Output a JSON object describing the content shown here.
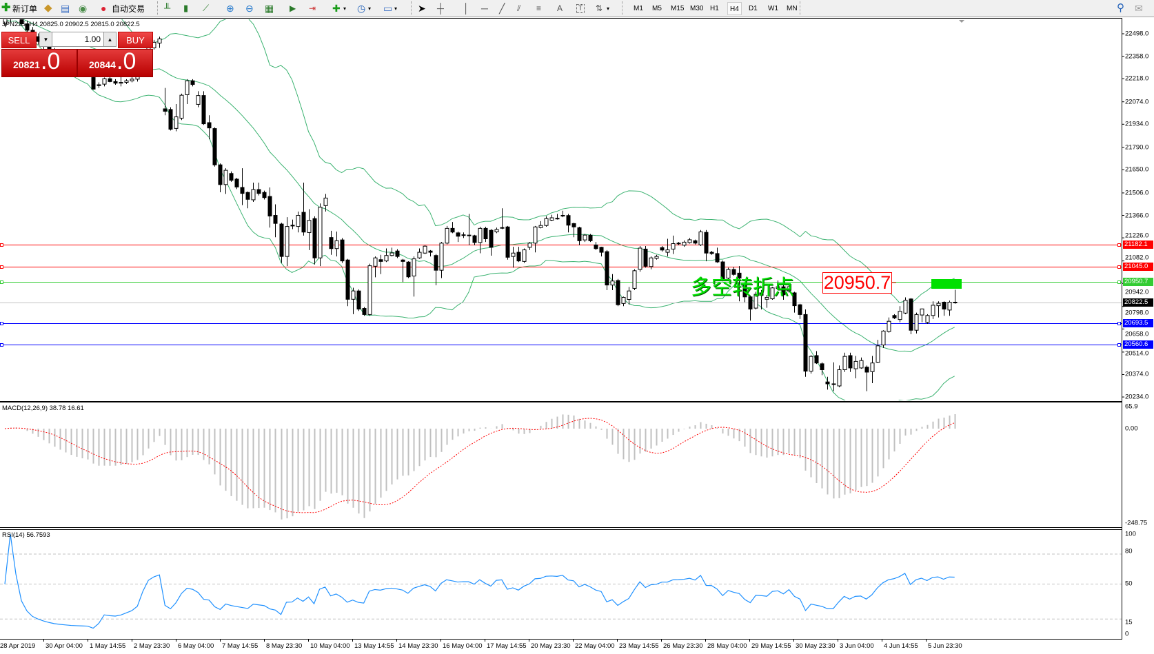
{
  "toolbar": {
    "new_order": "新订单",
    "auto_trading": "自动交易",
    "timeframes": [
      "M1",
      "M5",
      "M15",
      "M30",
      "H1",
      "H4",
      "D1",
      "W1",
      "MN"
    ],
    "active_timeframe": "H4",
    "text_tool": "A",
    "label_tool": "T"
  },
  "chart_info": "JPN225-,H4  20825.0 20902.5 20815.0 20822.5",
  "trade_panel": {
    "sell_label": "SELL",
    "buy_label": "BUY",
    "lot": "1.00",
    "bid_main": "20821",
    "bid_frac": ".0",
    "ask_main": "20844",
    "ask_frac": ".0"
  },
  "annotation": {
    "text": "多空转折点",
    "price_box": "20950.7",
    "text_color": "#00e000"
  },
  "price_axis": [
    "22498.0",
    "22358.0",
    "22218.0",
    "22074.0",
    "21934.0",
    "21790.0",
    "21650.0",
    "21506.0",
    "21366.0",
    "21226.0",
    "21082.0",
    "20942.0",
    "20798.0",
    "20658.0",
    "20514.0",
    "20374.0",
    "20234.0"
  ],
  "levels": [
    {
      "value": "21182.1",
      "color": "#ff0000"
    },
    {
      "value": "21045.0",
      "color": "#ff0000"
    },
    {
      "value": "20950.7",
      "color": "#33cc33"
    },
    {
      "value": "20693.5",
      "color": "#0000ff"
    },
    {
      "value": "20560.6",
      "color": "#0000ff"
    }
  ],
  "current_price": {
    "value": "20822.5",
    "color": "#000000"
  },
  "macd": {
    "label": "MACD(12,26,9) 38.78 16.61",
    "axis": [
      "65.9",
      "0.00",
      "-248.75"
    ]
  },
  "rsi": {
    "label": "RSI(14) 56.7593",
    "axis": [
      "100",
      "80",
      "50",
      "15",
      "0"
    ],
    "levels": [
      80,
      50,
      15
    ]
  },
  "time_axis": [
    "28 Apr 2019",
    "30 Apr 04:00",
    "1 May 14:55",
    "2 May 23:30",
    "6 May 04:00",
    "7 May 14:55",
    "8 May 23:30",
    "10 May 04:00",
    "13 May 14:55",
    "14 May 23:30",
    "16 May 04:00",
    "17 May 14:55",
    "20 May 23:30",
    "22 May 04:00",
    "23 May 14:55",
    "26 May 23:30",
    "28 May 04:00",
    "29 May 14:55",
    "30 May 23:30",
    "3 Jun 04:00",
    "4 Jun 14:55",
    "5 Jun 23:30"
  ],
  "colors": {
    "bands": "#3cb371",
    "macd_hist": "#c0c0c0",
    "macd_signal": "#ff0000",
    "rsi": "#1e90ff"
  },
  "chart_data": {
    "type": "candlestick",
    "symbol": "JPN225-",
    "timeframe": "H4",
    "ylim": [
      20234,
      22498
    ],
    "indicators": [
      "Bands(20,2)",
      "MACD(12,26,9)",
      "RSI(14)"
    ],
    "ohlc": [
      [
        22560,
        22600,
        22540,
        22590
      ],
      [
        22590,
        22650,
        22570,
        22620
      ],
      [
        22620,
        22660,
        22590,
        22600
      ],
      [
        22600,
        22620,
        22550,
        22560
      ],
      [
        22560,
        22580,
        22510,
        22520
      ],
      [
        22520,
        22540,
        22470,
        22480
      ],
      [
        22480,
        22500,
        22430,
        22450
      ],
      [
        22450,
        22480,
        22400,
        22420
      ],
      [
        22420,
        22440,
        22370,
        22390
      ],
      [
        22390,
        22410,
        22350,
        22360
      ],
      [
        22360,
        22380,
        22320,
        22340
      ],
      [
        22340,
        22360,
        22300,
        22320
      ],
      [
        22320,
        22340,
        22280,
        22300
      ],
      [
        22300,
        22320,
        22270,
        22290
      ],
      [
        22290,
        22300,
        22260,
        22280
      ],
      [
        22280,
        22290,
        22255,
        22270
      ],
      [
        22225,
        22260,
        22150,
        22153
      ],
      [
        22180,
        22195,
        22160,
        22175
      ],
      [
        22184,
        22225,
        22170,
        22218
      ],
      [
        22218,
        22240,
        22195,
        22200
      ],
      [
        22200,
        22215,
        22180,
        22190
      ],
      [
        22190,
        22250,
        22170,
        22195
      ],
      [
        22195,
        22215,
        22185,
        22205
      ],
      [
        22205,
        22230,
        22195,
        22215
      ],
      [
        22215,
        22260,
        22200,
        22235
      ],
      [
        22235,
        22330,
        22230,
        22320
      ],
      [
        22320,
        22420,
        22310,
        22410
      ],
      [
        22410,
        22460,
        22400,
        22445
      ],
      [
        22440,
        22480,
        22410,
        22466
      ],
      [
        22030,
        22160,
        21990,
        22015
      ],
      [
        22026,
        22040,
        21895,
        21903
      ],
      [
        21908,
        22060,
        21890,
        21980
      ],
      [
        21972,
        22125,
        21960,
        22115
      ],
      [
        22118,
        22215,
        22060,
        22205
      ],
      [
        22205,
        22215,
        22170,
        22182
      ],
      [
        22058,
        22140,
        22040,
        22113
      ],
      [
        22113,
        22140,
        21930,
        21937
      ],
      [
        21944,
        21990,
        21840,
        21911
      ],
      [
        21907,
        21915,
        21670,
        21681
      ],
      [
        21681,
        21690,
        21510,
        21558
      ],
      [
        21558,
        21660,
        21500,
        21647
      ],
      [
        21627,
        21640,
        21575,
        21585
      ],
      [
        21592,
        21600,
        21530,
        21543
      ],
      [
        21540,
        21660,
        21430,
        21503
      ],
      [
        21509,
        21515,
        21410,
        21466
      ],
      [
        21463,
        21570,
        21450,
        21527
      ],
      [
        21527,
        21570,
        21490,
        21503
      ],
      [
        21509,
        21520,
        21465,
        21477
      ],
      [
        21484,
        21540,
        21290,
        21362
      ],
      [
        21366,
        21435,
        21230,
        21316
      ],
      [
        21312,
        21320,
        21070,
        21110
      ],
      [
        21110,
        21355,
        21050,
        21297
      ],
      [
        21305,
        21340,
        21280,
        21300
      ],
      [
        21297,
        21390,
        21260,
        21366
      ],
      [
        21385,
        21570,
        21240,
        21262
      ],
      [
        21259,
        21405,
        21150,
        21335
      ],
      [
        21346,
        21360,
        21060,
        21101
      ],
      [
        21101,
        21440,
        21050,
        21417
      ],
      [
        21427,
        21500,
        21390,
        21474
      ],
      [
        21228,
        21270,
        21120,
        21159
      ],
      [
        21159,
        21265,
        21110,
        21208
      ],
      [
        21213,
        21225,
        21070,
        21082
      ],
      [
        21088,
        21095,
        20800,
        20843
      ],
      [
        20843,
        20915,
        20750,
        20895
      ],
      [
        20895,
        20905,
        20770,
        20782
      ],
      [
        20786,
        20795,
        20740,
        20748
      ],
      [
        20748,
        21065,
        20740,
        21052
      ],
      [
        21049,
        21110,
        20980,
        21101
      ],
      [
        21090,
        21120,
        21000,
        21079
      ],
      [
        21082,
        21160,
        21075,
        21116
      ],
      [
        21116,
        21165,
        21110,
        21132
      ],
      [
        21144,
        21155,
        21100,
        21110
      ],
      [
        21088,
        21095,
        20950,
        21079
      ],
      [
        21075,
        21080,
        20975,
        20983
      ],
      [
        20988,
        21110,
        20860,
        21095
      ],
      [
        21101,
        21160,
        21095,
        21136
      ],
      [
        21131,
        21180,
        21125,
        21174
      ],
      [
        21144,
        21150,
        21110,
        21136
      ],
      [
        21116,
        21125,
        20930,
        21024
      ],
      [
        21024,
        21200,
        20975,
        21193
      ],
      [
        21193,
        21300,
        21185,
        21285
      ],
      [
        21285,
        21325,
        21255,
        21262
      ],
      [
        21257,
        21265,
        21200,
        21236
      ],
      [
        21245,
        21260,
        21225,
        21243
      ],
      [
        21243,
        21375,
        21180,
        21242
      ],
      [
        21239,
        21245,
        21180,
        21197
      ],
      [
        21197,
        21295,
        21130,
        21285
      ],
      [
        21285,
        21295,
        21200,
        21220
      ],
      [
        21273,
        21280,
        21115,
        21167
      ],
      [
        21263,
        21290,
        21255,
        21278
      ],
      [
        21290,
        21410,
        21280,
        21288
      ],
      [
        21294,
        21300,
        21090,
        21105
      ],
      [
        21110,
        21170,
        21040,
        21131
      ],
      [
        21136,
        21170,
        21075,
        21082
      ],
      [
        21079,
        21160,
        21070,
        21151
      ],
      [
        21167,
        21200,
        21150,
        21193
      ],
      [
        21193,
        21300,
        21135,
        21294
      ],
      [
        21290,
        21330,
        21285,
        21303
      ],
      [
        21303,
        21360,
        21295,
        21346
      ],
      [
        21336,
        21370,
        21330,
        21351
      ],
      [
        21348,
        21375,
        21340,
        21346
      ],
      [
        21366,
        21395,
        21355,
        21366
      ],
      [
        21365,
        21375,
        21260,
        21305
      ],
      [
        21315,
        21320,
        21230,
        21294
      ],
      [
        21289,
        21295,
        21180,
        21208
      ],
      [
        21213,
        21250,
        21200,
        21243
      ],
      [
        21242,
        21250,
        21200,
        21208
      ],
      [
        21182,
        21200,
        21150,
        21159
      ],
      [
        21167,
        21170,
        21110,
        21136
      ],
      [
        21140,
        21150,
        20900,
        20932
      ],
      [
        20932,
        21000,
        20900,
        20957
      ],
      [
        20960,
        20970,
        20800,
        20809
      ],
      [
        20817,
        20860,
        20800,
        20855
      ],
      [
        20842,
        20920,
        20810,
        20895
      ],
      [
        20911,
        21030,
        20900,
        21021
      ],
      [
        21029,
        21175,
        21015,
        21162
      ],
      [
        21156,
        21175,
        21040,
        21049
      ],
      [
        21047,
        21110,
        21030,
        21101
      ],
      [
        21098,
        21120,
        21090,
        21110
      ],
      [
        21165,
        21175,
        21140,
        21150
      ],
      [
        21136,
        21220,
        21110,
        21151
      ],
      [
        21156,
        21240,
        21125,
        21190
      ],
      [
        21190,
        21200,
        21180,
        21193
      ],
      [
        21180,
        21210,
        21170,
        21199
      ],
      [
        21196,
        21225,
        21190,
        21214
      ],
      [
        21208,
        21215,
        21185,
        21193
      ],
      [
        21182,
        21275,
        21175,
        21263
      ],
      [
        21260,
        21275,
        21080,
        21131
      ],
      [
        21136,
        21145,
        21120,
        21128
      ],
      [
        21128,
        21165,
        21070,
        21076
      ],
      [
        21076,
        21085,
        20955,
        20963
      ],
      [
        20975,
        21040,
        20965,
        21029
      ],
      [
        21029,
        21045,
        20990,
        20998
      ],
      [
        21006,
        21050,
        20830,
        20975
      ],
      [
        20929,
        20935,
        20825,
        20858
      ],
      [
        20858,
        20865,
        20710,
        20782
      ],
      [
        20788,
        20890,
        20780,
        20874
      ],
      [
        20883,
        20900,
        20780,
        20868
      ],
      [
        20843,
        20870,
        20790,
        20855
      ],
      [
        20846,
        20920,
        20840,
        20914
      ],
      [
        20910,
        20960,
        20905,
        20921
      ],
      [
        20921,
        20930,
        20840,
        20871
      ],
      [
        20895,
        20930,
        20885,
        20921
      ],
      [
        20883,
        20890,
        20760,
        20803
      ],
      [
        20809,
        20815,
        20720,
        20748
      ],
      [
        20748,
        20780,
        20360,
        20395
      ],
      [
        20395,
        20495,
        20380,
        20487
      ],
      [
        20492,
        20520,
        20440,
        20446
      ],
      [
        20441,
        20450,
        20370,
        20404
      ],
      [
        20328,
        20360,
        20280,
        20316
      ],
      [
        20316,
        20450,
        20270,
        20316
      ],
      [
        20303,
        20430,
        20295,
        20404
      ],
      [
        20404,
        20510,
        20390,
        20487
      ],
      [
        20492,
        20510,
        20390,
        20415
      ],
      [
        20410,
        20490,
        20350,
        20456
      ],
      [
        20415,
        20480,
        20410,
        20461
      ],
      [
        20420,
        20430,
        20270,
        20389
      ],
      [
        20392,
        20490,
        20320,
        20446
      ],
      [
        20450,
        20590,
        20445,
        20553
      ],
      [
        20558,
        20650,
        20540,
        20645
      ],
      [
        20642,
        20730,
        20635,
        20706
      ],
      [
        20742,
        20750,
        20720,
        20727
      ],
      [
        20717,
        20800,
        20700,
        20768
      ],
      [
        20757,
        20855,
        20750,
        20837
      ],
      [
        20845,
        20850,
        20625,
        20650
      ],
      [
        20650,
        20760,
        20630,
        20748
      ],
      [
        20745,
        20785,
        20700,
        20783
      ],
      [
        20699,
        20750,
        20690,
        20742
      ],
      [
        20742,
        20830,
        20720,
        20806
      ],
      [
        20803,
        20830,
        20730,
        20818
      ],
      [
        20825,
        20830,
        20740,
        20782
      ],
      [
        20776,
        20835,
        20740,
        20825
      ],
      [
        20825,
        20902.5,
        20815,
        20822.5
      ]
    ]
  }
}
